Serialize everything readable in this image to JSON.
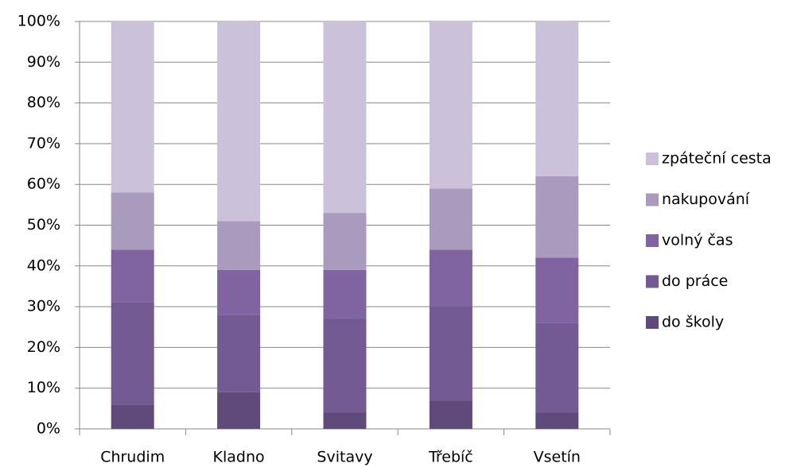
{
  "chart_data": {
    "type": "bar",
    "stacked": true,
    "categories": [
      "Chrudim",
      "Kladno",
      "Svitavy",
      "Třebíč",
      "Vsetín"
    ],
    "series": [
      {
        "name": "do školy",
        "color": "#604a7b",
        "values": [
          6,
          9,
          4,
          7,
          4
        ]
      },
      {
        "name": "do práce",
        "color": "#735a92",
        "values": [
          25,
          19,
          23,
          23,
          22
        ]
      },
      {
        "name": "volný čas",
        "color": "#8064a2",
        "values": [
          13,
          11,
          12,
          14,
          16
        ]
      },
      {
        "name": "nakupování",
        "color": "#a99bbd",
        "values": [
          14,
          12,
          14,
          15,
          20
        ]
      },
      {
        "name": "zpáteční cesta",
        "color": "#ccc1da",
        "values": [
          42,
          49,
          47,
          41,
          38
        ]
      }
    ],
    "ylim": [
      0,
      100
    ],
    "yticks": [
      {
        "value": 0,
        "label": "0%"
      },
      {
        "value": 10,
        "label": "10%"
      },
      {
        "value": 20,
        "label": "20%"
      },
      {
        "value": 30,
        "label": "30%"
      },
      {
        "value": 40,
        "label": "40%"
      },
      {
        "value": 50,
        "label": "50%"
      },
      {
        "value": 60,
        "label": "60%"
      },
      {
        "value": 70,
        "label": "70%"
      },
      {
        "value": 80,
        "label": "80%"
      },
      {
        "value": 90,
        "label": "90%"
      },
      {
        "value": 100,
        "label": "100%"
      }
    ],
    "grid": true,
    "legend": "right"
  }
}
